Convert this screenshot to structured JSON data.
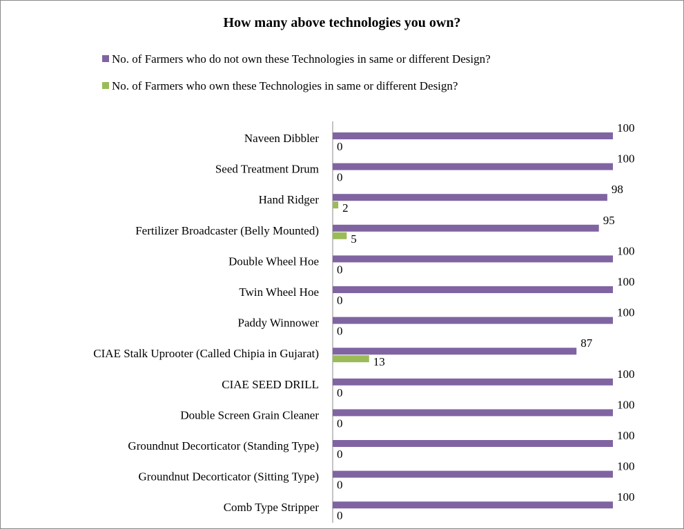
{
  "chart_data": {
    "type": "bar",
    "orientation": "horizontal",
    "title": "How many above technologies you own?",
    "legend_position": "top",
    "grid": false,
    "xlim": [
      0,
      100
    ],
    "categories": [
      "Naveen Dibbler",
      "Seed Treatment Drum",
      "Hand Ridger",
      "Fertilizer Broadcaster (Belly Mounted)",
      "Double Wheel Hoe",
      "Twin Wheel Hoe",
      "Paddy Winnower",
      "CIAE Stalk Uprooter (Called Chipia in Gujarat)",
      "CIAE SEED DRILL",
      "Double Screen Grain Cleaner",
      "Groundnut Decorticator (Standing Type)",
      "Groundnut Decorticator (Sitting Type)",
      "Comb Type Stripper"
    ],
    "series": [
      {
        "name": "No. of Farmers who do not own these Technologies in same or different Design?",
        "color": "#8064a2",
        "values": [
          100,
          100,
          98,
          95,
          100,
          100,
          100,
          87,
          100,
          100,
          100,
          100,
          100
        ]
      },
      {
        "name": "No. of Farmers who own these Technologies in same or different Design?",
        "color": "#9bbb59",
        "values": [
          0,
          0,
          2,
          5,
          0,
          0,
          0,
          13,
          0,
          0,
          0,
          0,
          0
        ]
      }
    ]
  }
}
